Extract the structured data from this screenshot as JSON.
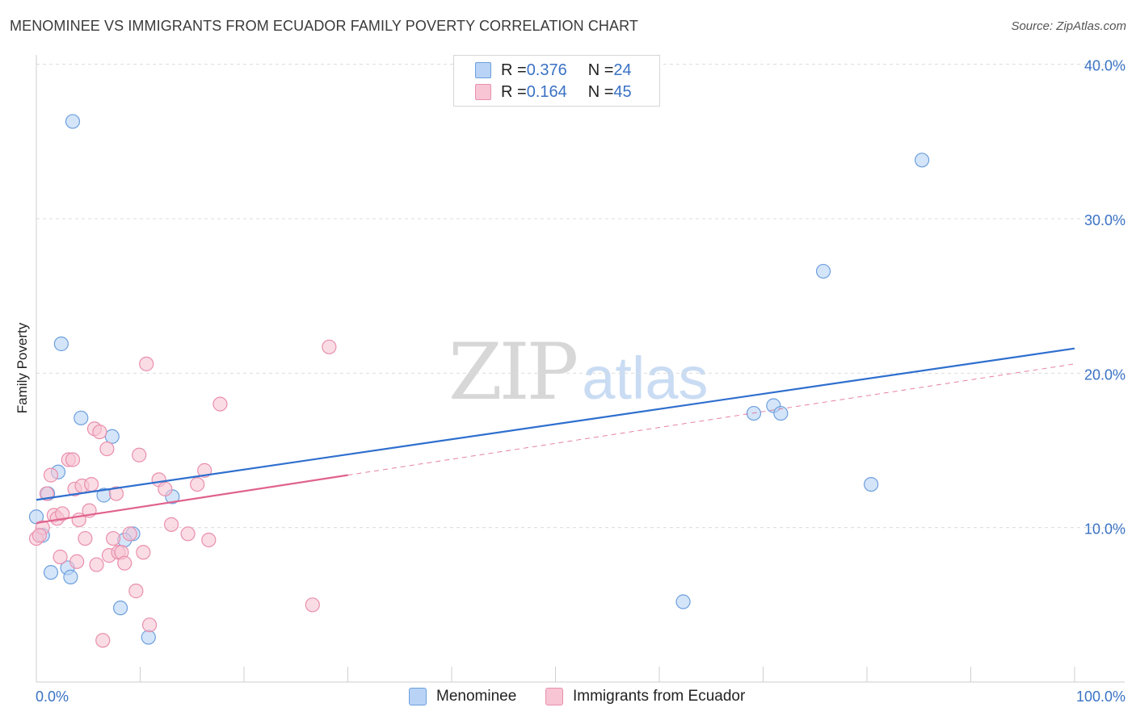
{
  "header": {
    "title": "MENOMINEE VS IMMIGRANTS FROM ECUADOR FAMILY POVERTY CORRELATION CHART",
    "source": "Source: ZipAtlas.com"
  },
  "watermark": {
    "zip": "ZIP",
    "atlas": "atlas"
  },
  "legend": {
    "rows": [
      {
        "r_label": "R = ",
        "r_value": "0.376",
        "n_label": "N = ",
        "n_value": "24"
      },
      {
        "r_label": "R = ",
        "r_value": "0.164",
        "n_label": "N = ",
        "n_value": "45"
      }
    ]
  },
  "colors": {
    "menominee_fill": "#b8d3f5",
    "menominee_stroke": "#6d9fde",
    "menominee_line": "#2f6fce",
    "ecuador_fill": "#f7c5d4",
    "ecuador_stroke": "#e98fac",
    "ecuador_line": "#e0628d",
    "grid": "#dcdcdc",
    "tick_label": "#3a72c4"
  },
  "chart_data": {
    "type": "scatter",
    "title": "MENOMINEE VS IMMIGRANTS FROM ECUADOR FAMILY POVERTY CORRELATION CHART",
    "xlabel": "",
    "ylabel": "Family Poverty",
    "xlim": [
      0,
      100
    ],
    "ylim": [
      0,
      42
    ],
    "x_tick_labels": [
      "0.0%",
      "100.0%"
    ],
    "y_ticks": [
      10,
      20,
      30,
      40
    ],
    "y_tick_labels": [
      "10.0%",
      "20.0%",
      "30.0%",
      "40.0%"
    ],
    "grid": true,
    "series": [
      {
        "name": "Menominee",
        "r": 0.376,
        "n": 24,
        "points": [
          [
            3.5,
            36.3
          ],
          [
            2.4,
            21.9
          ],
          [
            4.3,
            17.1
          ],
          [
            7.3,
            15.9
          ],
          [
            2.1,
            13.6
          ],
          [
            1.1,
            12.2
          ],
          [
            6.5,
            12.1
          ],
          [
            13.1,
            12.0
          ],
          [
            0.0,
            10.7
          ],
          [
            0.6,
            9.5
          ],
          [
            9.3,
            9.6
          ],
          [
            8.5,
            9.2
          ],
          [
            1.4,
            7.1
          ],
          [
            3.0,
            7.4
          ],
          [
            3.3,
            6.8
          ],
          [
            8.1,
            4.8
          ],
          [
            10.8,
            2.9
          ],
          [
            85.3,
            33.8
          ],
          [
            75.8,
            26.6
          ],
          [
            71.0,
            17.9
          ],
          [
            71.7,
            17.4
          ],
          [
            69.1,
            17.4
          ],
          [
            80.4,
            12.8
          ],
          [
            62.3,
            5.2
          ]
        ],
        "trend": {
          "x": [
            0,
            100
          ],
          "y": [
            11.8,
            21.6
          ],
          "style": "solid"
        }
      },
      {
        "name": "Immigrants from Ecuador",
        "r": 0.164,
        "n": 45,
        "points": [
          [
            0.0,
            9.3
          ],
          [
            0.6,
            10.0
          ],
          [
            1.0,
            12.2
          ],
          [
            1.4,
            13.4
          ],
          [
            1.7,
            10.8
          ],
          [
            2.0,
            10.6
          ],
          [
            2.3,
            8.1
          ],
          [
            2.5,
            10.9
          ],
          [
            3.1,
            14.4
          ],
          [
            3.5,
            14.4
          ],
          [
            3.7,
            12.5
          ],
          [
            3.9,
            7.8
          ],
          [
            4.1,
            10.5
          ],
          [
            4.4,
            12.7
          ],
          [
            4.7,
            9.3
          ],
          [
            5.1,
            11.1
          ],
          [
            5.3,
            12.8
          ],
          [
            5.6,
            16.4
          ],
          [
            5.8,
            7.6
          ],
          [
            6.1,
            16.2
          ],
          [
            6.4,
            2.7
          ],
          [
            6.8,
            15.1
          ],
          [
            7.0,
            8.2
          ],
          [
            7.4,
            9.3
          ],
          [
            7.7,
            12.2
          ],
          [
            7.9,
            8.4
          ],
          [
            8.2,
            8.4
          ],
          [
            8.5,
            7.7
          ],
          [
            9.0,
            9.6
          ],
          [
            9.6,
            5.9
          ],
          [
            9.9,
            14.7
          ],
          [
            10.3,
            8.4
          ],
          [
            10.6,
            20.6
          ],
          [
            10.9,
            3.7
          ],
          [
            11.8,
            13.1
          ],
          [
            12.4,
            12.5
          ],
          [
            13.0,
            10.2
          ],
          [
            14.6,
            9.6
          ],
          [
            15.5,
            12.8
          ],
          [
            16.2,
            13.7
          ],
          [
            16.6,
            9.2
          ],
          [
            17.7,
            18.0
          ],
          [
            26.6,
            5.0
          ],
          [
            28.2,
            21.7
          ],
          [
            0.3,
            9.5
          ]
        ],
        "trend": {
          "x": [
            0,
            30
          ],
          "y": [
            10.3,
            13.4
          ],
          "style": "solid",
          "extension": {
            "x": [
              30,
              100
            ],
            "y": [
              13.4,
              20.6
            ],
            "style": "dashed"
          }
        }
      }
    ]
  },
  "bottom_legend": {
    "items": [
      {
        "label": "Menominee"
      },
      {
        "label": "Immigrants from Ecuador"
      }
    ]
  }
}
